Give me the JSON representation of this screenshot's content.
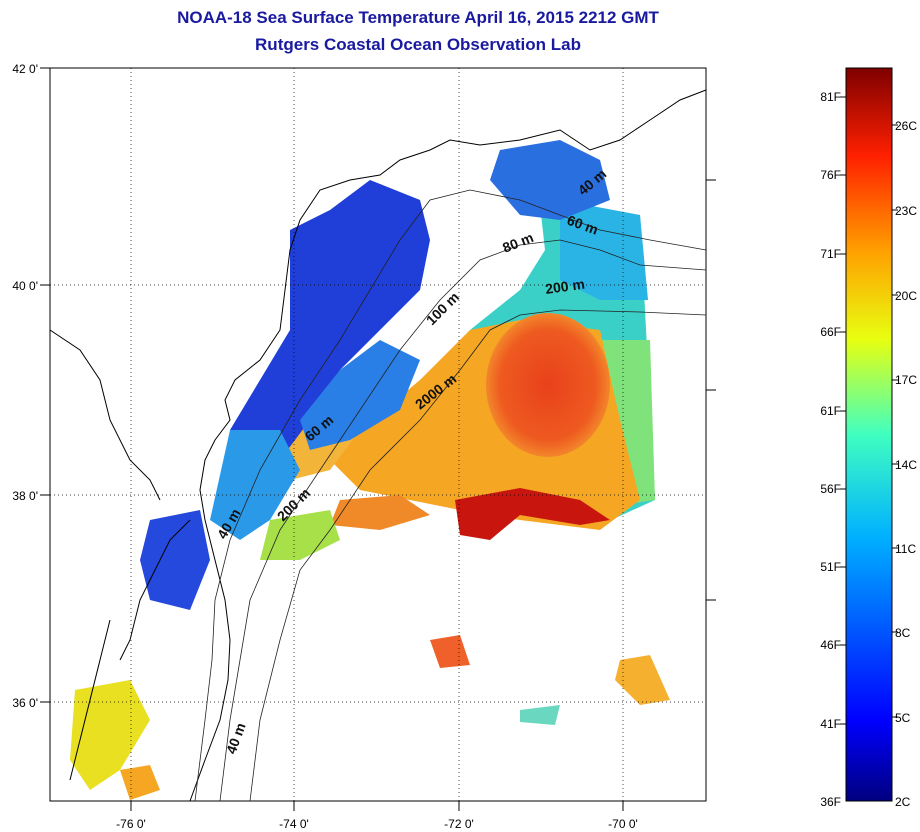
{
  "title": {
    "line1": "NOAA-18 Sea Surface Temperature April 16, 2015 2212 GMT",
    "line2": "Rutgers Coastal Ocean Observation Lab"
  },
  "map": {
    "lon_ticks": [
      "-76 0'",
      "-74 0'",
      "-72 0'",
      "-70 0'"
    ],
    "lat_ticks": [
      "42 0'",
      "40 0'",
      "38 0'",
      "36 0'"
    ],
    "isobaths": [
      "40 m",
      "60 m",
      "80 m",
      "200 m",
      "100 m",
      "2000 m",
      "60 m",
      "200 m",
      "40 m",
      "40 m"
    ]
  },
  "colorbar": {
    "fahrenheit": [
      "81F",
      "76F",
      "71F",
      "66F",
      "61F",
      "56F",
      "51F",
      "46F",
      "41F",
      "36F"
    ],
    "celsius": [
      "26C",
      "23C",
      "20C",
      "17C",
      "14C",
      "11C",
      "8C",
      "5C",
      "2C"
    ]
  },
  "colors": {
    "title": "#1a1aa0",
    "cold": "#1f3fd8",
    "cool": "#22b8e8",
    "warm": "#f5a623",
    "hot": "#e8411b",
    "hottest": "#c40f0f"
  }
}
